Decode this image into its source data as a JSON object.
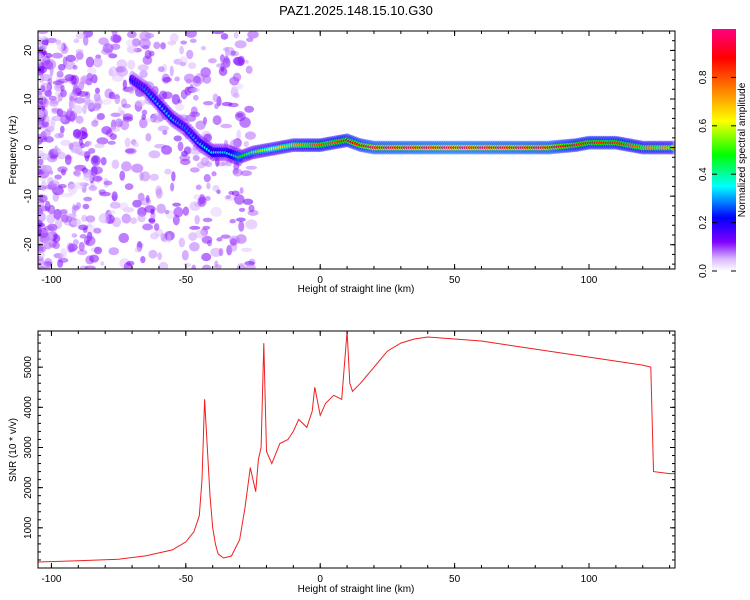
{
  "title": "PAZ1.2025.148.15.10.G30",
  "chart_data": [
    {
      "type": "heatmap",
      "xlabel": "Height of straight line (km)",
      "ylabel": "Frequency (Hz)",
      "xlim": [
        -105,
        132
      ],
      "ylim": [
        -25,
        24
      ],
      "xticks": [
        -100,
        -50,
        0,
        50,
        100
      ],
      "yticks": [
        -20,
        -10,
        0,
        10,
        20
      ],
      "colorbar": {
        "label": "Normalized spectral amplitude",
        "range": [
          0,
          1
        ],
        "ticks": [
          "0.0",
          "0.2",
          "0.4",
          "0.6",
          "0.8"
        ],
        "tick_values": [
          0,
          0.2,
          0.4,
          0.6,
          0.8
        ]
      },
      "colors": [
        "#ffffff",
        "#8000ff",
        "#0000ff",
        "#00ffff",
        "#00ff00",
        "#ffff00",
        "#ff8000",
        "#ff0000",
        "#ff0080"
      ],
      "ridge": [
        {
          "x": -70,
          "f": 14,
          "amp": 0.25
        },
        {
          "x": -65,
          "f": 12,
          "amp": 0.3
        },
        {
          "x": -60,
          "f": 9,
          "amp": 0.35
        },
        {
          "x": -55,
          "f": 6,
          "amp": 0.35
        },
        {
          "x": -50,
          "f": 4,
          "amp": 0.3
        },
        {
          "x": -45,
          "f": 1,
          "amp": 0.35
        },
        {
          "x": -40,
          "f": -1,
          "amp": 0.4
        },
        {
          "x": -35,
          "f": -1,
          "amp": 0.35
        },
        {
          "x": -30,
          "f": -2,
          "amp": 0.5
        },
        {
          "x": -25,
          "f": -1,
          "amp": 0.55
        },
        {
          "x": -20,
          "f": -0.5,
          "amp": 0.6
        },
        {
          "x": -15,
          "f": 0,
          "amp": 0.65
        },
        {
          "x": -10,
          "f": 0.5,
          "amp": 0.7
        },
        {
          "x": -5,
          "f": 0.5,
          "amp": 0.75
        },
        {
          "x": 0,
          "f": 0.5,
          "amp": 0.8
        },
        {
          "x": 5,
          "f": 1,
          "amp": 0.8
        },
        {
          "x": 10,
          "f": 1.5,
          "amp": 0.85
        },
        {
          "x": 15,
          "f": 0.5,
          "amp": 0.9
        },
        {
          "x": 20,
          "f": 0,
          "amp": 0.95
        },
        {
          "x": 50,
          "f": 0,
          "amp": 1.0
        },
        {
          "x": 85,
          "f": 0,
          "amp": 0.95
        },
        {
          "x": 95,
          "f": 0.5,
          "amp": 0.85
        },
        {
          "x": 100,
          "f": 1,
          "amp": 0.85
        },
        {
          "x": 110,
          "f": 1,
          "amp": 0.85
        },
        {
          "x": 120,
          "f": 0,
          "amp": 0.75
        },
        {
          "x": 132,
          "f": 0,
          "amp": 0.7
        }
      ]
    },
    {
      "type": "line",
      "xlabel": "Height of straight line (km)",
      "ylabel": "SNR (10 * v/v)",
      "xlim": [
        -105,
        132
      ],
      "ylim": [
        0,
        5900
      ],
      "xticks": [
        -100,
        -50,
        0,
        50,
        100
      ],
      "yticks": [
        1000,
        2000,
        3000,
        4000,
        5000
      ],
      "series": [
        {
          "color": "#ee2020",
          "x": [
            -105,
            -90,
            -75,
            -65,
            -55,
            -50,
            -47,
            -45,
            -44,
            -43,
            -42,
            -41,
            -40,
            -39,
            -38,
            -36,
            -33,
            -30,
            -28,
            -26,
            -24,
            -23,
            -22,
            -21,
            -20,
            -18,
            -15,
            -12,
            -10,
            -8,
            -5,
            -3,
            -2,
            0,
            2,
            5,
            8,
            10,
            11,
            12,
            15,
            20,
            25,
            30,
            35,
            40,
            50,
            60,
            70,
            80,
            90,
            100,
            110,
            115,
            120,
            123,
            124,
            130,
            132
          ],
          "y": [
            150,
            180,
            220,
            300,
            450,
            650,
            900,
            1300,
            2200,
            4200,
            3000,
            1800,
            1000,
            600,
            350,
            250,
            300,
            700,
            1500,
            2500,
            1900,
            2700,
            3000,
            5600,
            2900,
            2600,
            3100,
            3200,
            3400,
            3700,
            3500,
            3900,
            4500,
            3800,
            4100,
            4300,
            4200,
            5900,
            4600,
            4400,
            4600,
            5000,
            5400,
            5600,
            5700,
            5750,
            5700,
            5650,
            5550,
            5450,
            5350,
            5250,
            5150,
            5100,
            5050,
            5000,
            2400,
            2350,
            2350
          ]
        }
      ]
    }
  ]
}
